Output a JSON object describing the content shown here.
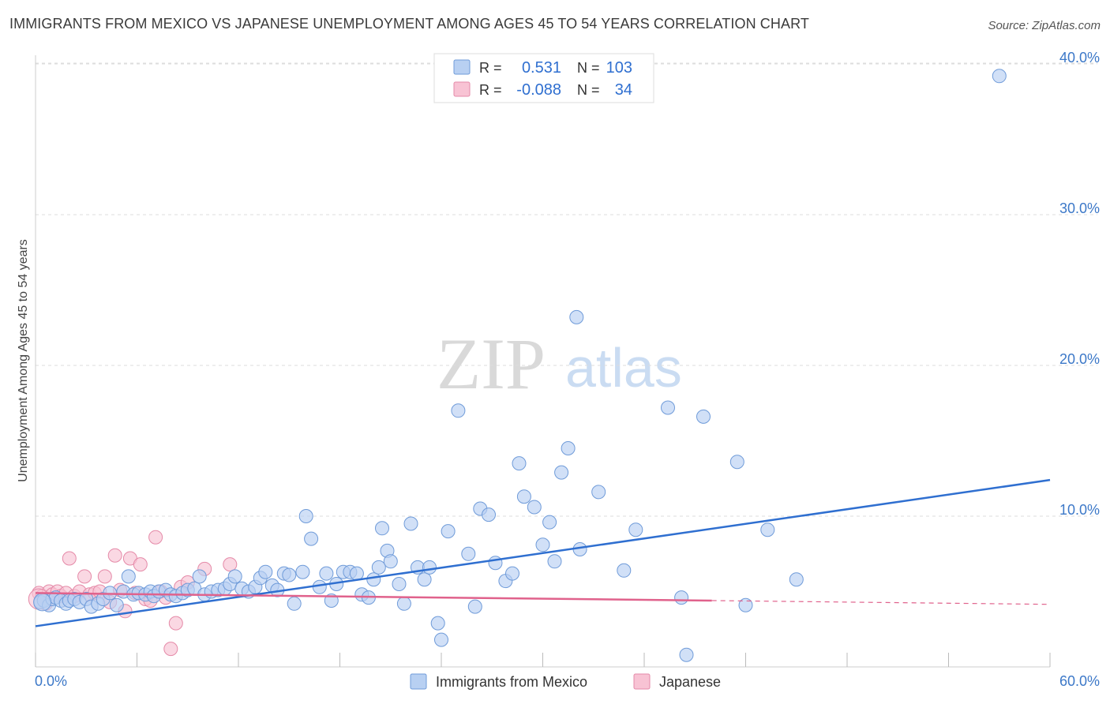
{
  "title": "IMMIGRANTS FROM MEXICO VS JAPANESE UNEMPLOYMENT AMONG AGES 45 TO 54 YEARS CORRELATION CHART",
  "source": "Source: ZipAtlas.com",
  "watermark": {
    "zip": "ZIP",
    "atlas": "atlas"
  },
  "colors": {
    "blue_fill": "#b8d0f2",
    "blue_stroke": "#6f9bd9",
    "blue_line": "#2f6fd0",
    "pink_fill": "#f8c3d4",
    "pink_stroke": "#e58aa8",
    "pink_line": "#e0628c",
    "axis_text": "#3c78c8",
    "grid": "#dddddd"
  },
  "legend": {
    "rows": [
      {
        "r_label": "R =",
        "r_value": "0.531",
        "n_label": "N =",
        "n_value": "103"
      },
      {
        "r_label": "R =",
        "r_value": "-0.088",
        "n_label": "N =",
        "n_value": "34"
      }
    ]
  },
  "chart_data": {
    "type": "scatter",
    "title": "IMMIGRANTS FROM MEXICO VS JAPANESE UNEMPLOYMENT AMONG AGES 45 TO 54 YEARS CORRELATION CHART",
    "xlabel": "",
    "ylabel": "Unemployment Among Ages 45 to 54 years",
    "xlim": [
      0,
      60
    ],
    "ylim": [
      0,
      40
    ],
    "x_ticks": [
      "0.0%",
      "60.0%"
    ],
    "y_ticks": [
      {
        "value": 10,
        "label": "10.0%"
      },
      {
        "value": 20,
        "label": "20.0%"
      },
      {
        "value": 30,
        "label": "30.0%"
      },
      {
        "value": 40,
        "label": "40.0%"
      }
    ],
    "grid": true,
    "legend_position": "bottom-center",
    "series": [
      {
        "name": "Immigrants from Mexico",
        "color": "#b8d0f2",
        "trend": {
          "x": [
            0,
            60
          ],
          "y": [
            2.7,
            12.4
          ],
          "style": "solid"
        },
        "points": [
          [
            0.3,
            4.3
          ],
          [
            0.5,
            4.4
          ],
          [
            0.8,
            4.1
          ],
          [
            1.0,
            4.5
          ],
          [
            1.2,
            4.6
          ],
          [
            1.5,
            4.4
          ],
          [
            1.8,
            4.2
          ],
          [
            2.0,
            4.4
          ],
          [
            2.3,
            4.5
          ],
          [
            2.6,
            4.3
          ],
          [
            3.0,
            4.5
          ],
          [
            3.3,
            4.0
          ],
          [
            3.7,
            4.2
          ],
          [
            4.0,
            4.5
          ],
          [
            4.4,
            4.9
          ],
          [
            4.8,
            4.1
          ],
          [
            5.2,
            5.0
          ],
          [
            5.5,
            6.0
          ],
          [
            5.8,
            4.8
          ],
          [
            6.1,
            4.9
          ],
          [
            6.5,
            4.8
          ],
          [
            6.8,
            5.0
          ],
          [
            7.0,
            4.7
          ],
          [
            7.3,
            5.0
          ],
          [
            7.7,
            5.1
          ],
          [
            8.0,
            4.8
          ],
          [
            8.3,
            4.7
          ],
          [
            8.7,
            4.9
          ],
          [
            9.0,
            5.1
          ],
          [
            9.4,
            5.2
          ],
          [
            9.7,
            6.0
          ],
          [
            10.0,
            4.8
          ],
          [
            10.4,
            5.0
          ],
          [
            10.8,
            5.1
          ],
          [
            11.2,
            5.2
          ],
          [
            11.5,
            5.5
          ],
          [
            11.8,
            6.0
          ],
          [
            12.2,
            5.2
          ],
          [
            12.6,
            5.0
          ],
          [
            13.0,
            5.3
          ],
          [
            13.3,
            5.9
          ],
          [
            13.6,
            6.3
          ],
          [
            14.0,
            5.4
          ],
          [
            14.3,
            5.1
          ],
          [
            14.7,
            6.2
          ],
          [
            15.0,
            6.1
          ],
          [
            15.3,
            4.2
          ],
          [
            15.8,
            6.3
          ],
          [
            16.0,
            10.0
          ],
          [
            16.3,
            8.5
          ],
          [
            16.8,
            5.3
          ],
          [
            17.2,
            6.2
          ],
          [
            17.5,
            4.4
          ],
          [
            17.8,
            5.5
          ],
          [
            18.2,
            6.3
          ],
          [
            18.6,
            6.3
          ],
          [
            19.0,
            6.2
          ],
          [
            19.3,
            4.8
          ],
          [
            19.7,
            4.6
          ],
          [
            20.0,
            5.8
          ],
          [
            20.3,
            6.6
          ],
          [
            20.5,
            9.2
          ],
          [
            20.8,
            7.7
          ],
          [
            21.0,
            7.0
          ],
          [
            21.5,
            5.5
          ],
          [
            21.8,
            4.2
          ],
          [
            22.2,
            9.5
          ],
          [
            22.6,
            6.6
          ],
          [
            23.0,
            5.8
          ],
          [
            23.3,
            6.6
          ],
          [
            23.8,
            2.9
          ],
          [
            24.0,
            1.8
          ],
          [
            24.4,
            9.0
          ],
          [
            25.0,
            17.0
          ],
          [
            25.6,
            7.5
          ],
          [
            26.0,
            4.0
          ],
          [
            26.3,
            10.5
          ],
          [
            26.8,
            10.1
          ],
          [
            27.2,
            6.9
          ],
          [
            27.8,
            5.7
          ],
          [
            28.2,
            6.2
          ],
          [
            28.6,
            13.5
          ],
          [
            28.9,
            11.3
          ],
          [
            29.5,
            10.6
          ],
          [
            30.0,
            8.1
          ],
          [
            30.4,
            9.6
          ],
          [
            30.7,
            7.0
          ],
          [
            31.1,
            12.9
          ],
          [
            31.5,
            14.5
          ],
          [
            32.0,
            23.2
          ],
          [
            32.2,
            7.8
          ],
          [
            33.3,
            11.6
          ],
          [
            34.8,
            6.4
          ],
          [
            35.5,
            9.1
          ],
          [
            37.4,
            17.2
          ],
          [
            38.2,
            4.6
          ],
          [
            38.5,
            0.8
          ],
          [
            39.5,
            16.6
          ],
          [
            41.5,
            13.6
          ],
          [
            42.0,
            4.1
          ],
          [
            43.3,
            9.1
          ],
          [
            45.0,
            5.8
          ],
          [
            57.0,
            39.2
          ]
        ]
      },
      {
        "name": "Japanese",
        "color": "#f8c3d4",
        "trend": {
          "x": [
            0,
            40
          ],
          "y": [
            4.9,
            4.4
          ],
          "style": "solid",
          "extend_to": 60,
          "extend_style": "dashed"
        },
        "points": [
          [
            0.2,
            4.9
          ],
          [
            0.4,
            4.7
          ],
          [
            0.6,
            4.2
          ],
          [
            0.8,
            5.0
          ],
          [
            1.0,
            4.8
          ],
          [
            1.3,
            5.0
          ],
          [
            1.5,
            4.7
          ],
          [
            1.8,
            4.9
          ],
          [
            2.0,
            7.2
          ],
          [
            2.3,
            4.7
          ],
          [
            2.6,
            5.0
          ],
          [
            2.9,
            6.0
          ],
          [
            3.2,
            4.8
          ],
          [
            3.5,
            4.9
          ],
          [
            3.8,
            5.0
          ],
          [
            4.1,
            6.0
          ],
          [
            4.4,
            4.3
          ],
          [
            4.7,
            7.4
          ],
          [
            5.0,
            5.1
          ],
          [
            5.3,
            3.7
          ],
          [
            5.6,
            7.2
          ],
          [
            5.9,
            4.9
          ],
          [
            6.2,
            6.8
          ],
          [
            6.5,
            4.5
          ],
          [
            6.8,
            4.4
          ],
          [
            7.1,
            8.6
          ],
          [
            7.4,
            5.0
          ],
          [
            7.7,
            4.6
          ],
          [
            8.0,
            1.2
          ],
          [
            8.3,
            2.9
          ],
          [
            8.6,
            5.3
          ],
          [
            9.0,
            5.6
          ],
          [
            10.0,
            6.5
          ],
          [
            11.5,
            6.8
          ]
        ]
      }
    ]
  }
}
